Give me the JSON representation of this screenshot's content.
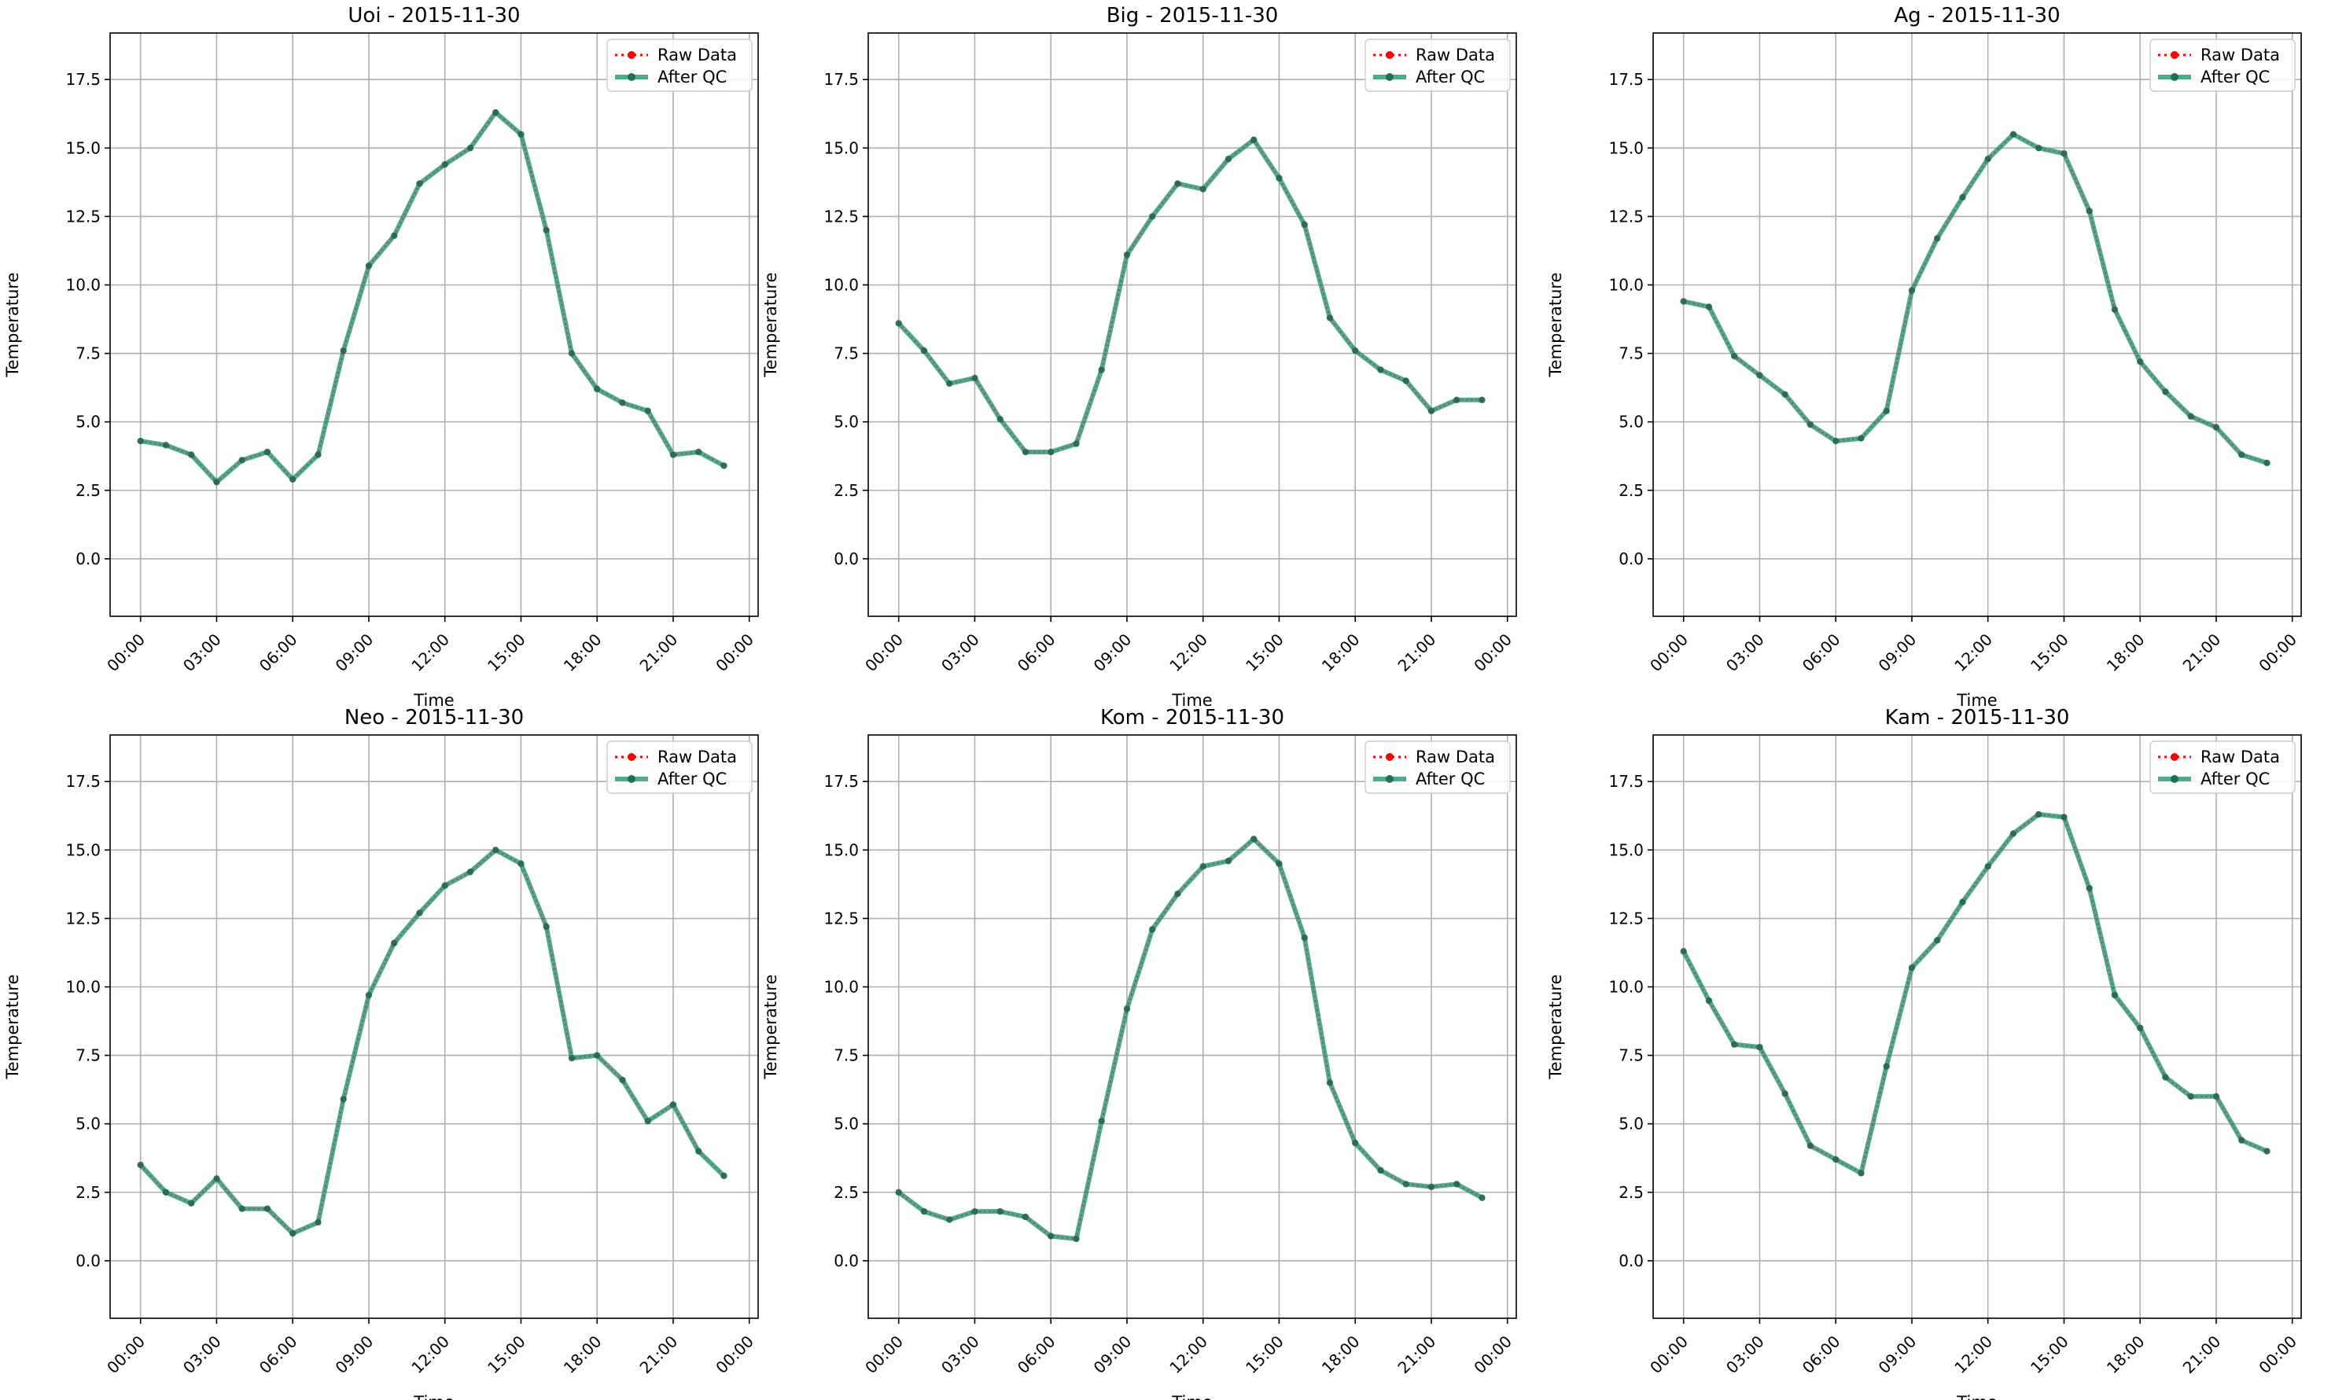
{
  "figure": {
    "xlabel": "Time",
    "ylabel": "Temperature"
  },
  "legend": {
    "raw_label": "Raw Data",
    "qc_label": "After QC",
    "placement": "upper right"
  },
  "colors": {
    "raw": "#ff0000",
    "qc": "#2a9d7a",
    "qc_marker": "#1f6f5a",
    "grid": "#b0b0b0",
    "axis": "#000000"
  },
  "chart_data": [
    {
      "type": "line",
      "title": "Uoi - 2015-11-30",
      "xlabel": "Time",
      "ylabel": "Temperature",
      "x": [
        "00:00",
        "01:00",
        "02:00",
        "03:00",
        "04:00",
        "05:00",
        "06:00",
        "07:00",
        "08:00",
        "09:00",
        "10:00",
        "11:00",
        "12:00",
        "13:00",
        "14:00",
        "15:00",
        "16:00",
        "17:00",
        "18:00",
        "19:00",
        "20:00",
        "21:00",
        "22:00",
        "23:00"
      ],
      "xticks": [
        "00:00",
        "03:00",
        "06:00",
        "09:00",
        "12:00",
        "15:00",
        "18:00",
        "21:00",
        "00:00"
      ],
      "yticks": [
        "0.0",
        "2.5",
        "5.0",
        "7.5",
        "10.0",
        "12.5",
        "15.0",
        "17.5"
      ],
      "ylim": [
        -2.1,
        19.2
      ],
      "grid": true,
      "legend": "top-right",
      "series": [
        {
          "name": "Raw Data",
          "values": [
            4.3,
            4.15,
            3.8,
            2.8,
            3.6,
            3.9,
            2.9,
            3.8,
            7.6,
            10.7,
            11.8,
            13.7,
            14.4,
            15.0,
            16.3,
            15.5,
            12.0,
            7.5,
            6.2,
            5.7,
            5.4,
            3.8,
            3.9,
            3.4
          ]
        },
        {
          "name": "After QC",
          "values": [
            4.3,
            4.15,
            3.8,
            2.8,
            3.6,
            3.9,
            2.9,
            3.8,
            7.6,
            10.7,
            11.8,
            13.7,
            14.4,
            15.0,
            16.3,
            15.5,
            12.0,
            7.5,
            6.2,
            5.7,
            5.4,
            3.8,
            3.9,
            3.4
          ]
        }
      ]
    },
    {
      "type": "line",
      "title": "Big - 2015-11-30",
      "xlabel": "Time",
      "ylabel": "Temperature",
      "x": [
        "00:00",
        "01:00",
        "02:00",
        "03:00",
        "04:00",
        "05:00",
        "06:00",
        "07:00",
        "08:00",
        "09:00",
        "10:00",
        "11:00",
        "12:00",
        "13:00",
        "14:00",
        "15:00",
        "16:00",
        "17:00",
        "18:00",
        "19:00",
        "20:00",
        "21:00",
        "22:00",
        "23:00"
      ],
      "xticks": [
        "00:00",
        "03:00",
        "06:00",
        "09:00",
        "12:00",
        "15:00",
        "18:00",
        "21:00",
        "00:00"
      ],
      "yticks": [
        "0.0",
        "2.5",
        "5.0",
        "7.5",
        "10.0",
        "12.5",
        "15.0",
        "17.5"
      ],
      "ylim": [
        -2.1,
        19.2
      ],
      "grid": true,
      "legend": "top-right",
      "series": [
        {
          "name": "Raw Data",
          "values": [
            8.6,
            7.6,
            6.4,
            6.6,
            5.1,
            3.9,
            3.9,
            4.2,
            6.9,
            11.1,
            12.5,
            13.7,
            13.5,
            14.6,
            15.3,
            13.9,
            12.2,
            8.8,
            7.6,
            6.9,
            6.5,
            5.4,
            5.8,
            5.8
          ]
        },
        {
          "name": "After QC",
          "values": [
            8.6,
            7.6,
            6.4,
            6.6,
            5.1,
            3.9,
            3.9,
            4.2,
            6.9,
            11.1,
            12.5,
            13.7,
            13.5,
            14.6,
            15.3,
            13.9,
            12.2,
            8.8,
            7.6,
            6.9,
            6.5,
            5.4,
            5.8,
            5.8
          ]
        }
      ]
    },
    {
      "type": "line",
      "title": "Ag - 2015-11-30",
      "xlabel": "Time",
      "ylabel": "Temperature",
      "x": [
        "00:00",
        "01:00",
        "02:00",
        "03:00",
        "04:00",
        "05:00",
        "06:00",
        "07:00",
        "08:00",
        "09:00",
        "10:00",
        "11:00",
        "12:00",
        "13:00",
        "14:00",
        "15:00",
        "16:00",
        "17:00",
        "18:00",
        "19:00",
        "20:00",
        "21:00",
        "22:00",
        "23:00"
      ],
      "xticks": [
        "00:00",
        "03:00",
        "06:00",
        "09:00",
        "12:00",
        "15:00",
        "18:00",
        "21:00",
        "00:00"
      ],
      "yticks": [
        "0.0",
        "2.5",
        "5.0",
        "7.5",
        "10.0",
        "12.5",
        "15.0",
        "17.5"
      ],
      "ylim": [
        -2.1,
        19.2
      ],
      "grid": true,
      "legend": "top-right",
      "series": [
        {
          "name": "Raw Data",
          "values": [
            9.4,
            9.2,
            7.4,
            6.7,
            6.0,
            4.9,
            4.3,
            4.4,
            5.4,
            9.8,
            11.7,
            13.2,
            14.6,
            15.5,
            15.0,
            14.8,
            12.7,
            9.1,
            7.2,
            6.1,
            5.2,
            4.8,
            3.8,
            3.5
          ]
        },
        {
          "name": "After QC",
          "values": [
            9.4,
            9.2,
            7.4,
            6.7,
            6.0,
            4.9,
            4.3,
            4.4,
            5.4,
            9.8,
            11.7,
            13.2,
            14.6,
            15.5,
            15.0,
            14.8,
            12.7,
            9.1,
            7.2,
            6.1,
            5.2,
            4.8,
            3.8,
            3.5
          ]
        }
      ]
    },
    {
      "type": "line",
      "title": "Neo - 2015-11-30",
      "xlabel": "Time",
      "ylabel": "Temperature",
      "x": [
        "00:00",
        "01:00",
        "02:00",
        "03:00",
        "04:00",
        "05:00",
        "06:00",
        "07:00",
        "08:00",
        "09:00",
        "10:00",
        "11:00",
        "12:00",
        "13:00",
        "14:00",
        "15:00",
        "16:00",
        "17:00",
        "18:00",
        "19:00",
        "20:00",
        "21:00",
        "22:00",
        "23:00"
      ],
      "xticks": [
        "00:00",
        "03:00",
        "06:00",
        "09:00",
        "12:00",
        "15:00",
        "18:00",
        "21:00",
        "00:00"
      ],
      "yticks": [
        "0.0",
        "2.5",
        "5.0",
        "7.5",
        "10.0",
        "12.5",
        "15.0",
        "17.5"
      ],
      "ylim": [
        -2.1,
        19.2
      ],
      "grid": true,
      "legend": "top-right",
      "series": [
        {
          "name": "Raw Data",
          "values": [
            3.5,
            2.5,
            2.1,
            3.0,
            1.9,
            1.9,
            1.0,
            1.4,
            5.9,
            9.7,
            11.6,
            12.7,
            13.7,
            14.2,
            15.0,
            14.5,
            12.2,
            7.4,
            7.5,
            6.6,
            5.1,
            5.7,
            4.0,
            3.1
          ]
        },
        {
          "name": "After QC",
          "values": [
            3.5,
            2.5,
            2.1,
            3.0,
            1.9,
            1.9,
            1.0,
            1.4,
            5.9,
            9.7,
            11.6,
            12.7,
            13.7,
            14.2,
            15.0,
            14.5,
            12.2,
            7.4,
            7.5,
            6.6,
            5.1,
            5.7,
            4.0,
            3.1
          ]
        }
      ]
    },
    {
      "type": "line",
      "title": "Kom - 2015-11-30",
      "xlabel": "Time",
      "ylabel": "Temperature",
      "x": [
        "00:00",
        "01:00",
        "02:00",
        "03:00",
        "04:00",
        "05:00",
        "06:00",
        "07:00",
        "08:00",
        "09:00",
        "10:00",
        "11:00",
        "12:00",
        "13:00",
        "14:00",
        "15:00",
        "16:00",
        "17:00",
        "18:00",
        "19:00",
        "20:00",
        "21:00",
        "22:00",
        "23:00"
      ],
      "xticks": [
        "00:00",
        "03:00",
        "06:00",
        "09:00",
        "12:00",
        "15:00",
        "18:00",
        "21:00",
        "00:00"
      ],
      "yticks": [
        "0.0",
        "2.5",
        "5.0",
        "7.5",
        "10.0",
        "12.5",
        "15.0",
        "17.5"
      ],
      "ylim": [
        -2.1,
        19.2
      ],
      "grid": true,
      "legend": "top-right",
      "series": [
        {
          "name": "Raw Data",
          "values": [
            2.5,
            1.8,
            1.5,
            1.8,
            1.8,
            1.6,
            0.9,
            0.8,
            5.1,
            9.2,
            12.1,
            13.4,
            14.4,
            14.6,
            15.4,
            14.5,
            11.8,
            6.5,
            4.3,
            3.3,
            2.8,
            2.7,
            2.8,
            2.3
          ]
        },
        {
          "name": "After QC",
          "values": [
            2.5,
            1.8,
            1.5,
            1.8,
            1.8,
            1.6,
            0.9,
            0.8,
            5.1,
            9.2,
            12.1,
            13.4,
            14.4,
            14.6,
            15.4,
            14.5,
            11.8,
            6.5,
            4.3,
            3.3,
            2.8,
            2.7,
            2.8,
            2.3
          ]
        }
      ]
    },
    {
      "type": "line",
      "title": "Kam - 2015-11-30",
      "xlabel": "Time",
      "ylabel": "Temperature",
      "x": [
        "00:00",
        "01:00",
        "02:00",
        "03:00",
        "04:00",
        "05:00",
        "06:00",
        "07:00",
        "08:00",
        "09:00",
        "10:00",
        "11:00",
        "12:00",
        "13:00",
        "14:00",
        "15:00",
        "16:00",
        "17:00",
        "18:00",
        "19:00",
        "20:00",
        "21:00",
        "22:00",
        "23:00"
      ],
      "xticks": [
        "00:00",
        "03:00",
        "06:00",
        "09:00",
        "12:00",
        "15:00",
        "18:00",
        "21:00",
        "00:00"
      ],
      "yticks": [
        "0.0",
        "2.5",
        "5.0",
        "7.5",
        "10.0",
        "12.5",
        "15.0",
        "17.5"
      ],
      "ylim": [
        -2.1,
        19.2
      ],
      "grid": true,
      "legend": "top-right",
      "series": [
        {
          "name": "Raw Data",
          "values": [
            11.3,
            9.5,
            7.9,
            7.8,
            6.1,
            4.2,
            3.7,
            3.2,
            7.1,
            10.7,
            11.7,
            13.1,
            14.4,
            15.6,
            16.3,
            16.2,
            13.6,
            9.7,
            8.5,
            6.7,
            6.0,
            6.0,
            4.4,
            4.0
          ]
        },
        {
          "name": "After QC",
          "values": [
            11.3,
            9.5,
            7.9,
            7.8,
            6.1,
            4.2,
            3.7,
            3.2,
            7.1,
            10.7,
            11.7,
            13.1,
            14.4,
            15.6,
            16.3,
            16.2,
            13.6,
            9.7,
            8.5,
            6.7,
            6.0,
            6.0,
            4.4,
            4.0
          ]
        }
      ]
    }
  ]
}
